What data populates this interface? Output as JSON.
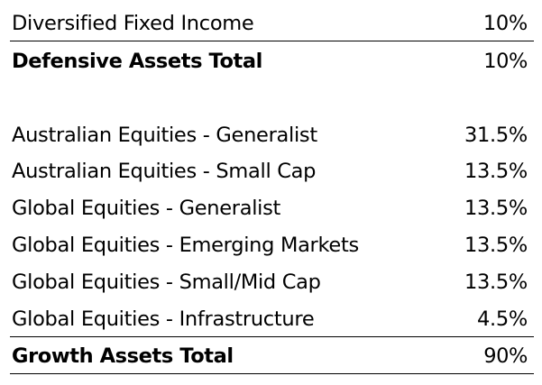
{
  "defensive": {
    "rows": [
      {
        "label": "Diversified Fixed Income",
        "value": "10%"
      }
    ],
    "total": {
      "label": "Defensive Assets Total",
      "value": "10%"
    }
  },
  "growth": {
    "rows": [
      {
        "label": "Australian Equities - Generalist",
        "value": "31.5%"
      },
      {
        "label": "Australian Equities - Small Cap",
        "value": "13.5%"
      },
      {
        "label": "Global Equities - Generalist",
        "value": "13.5%"
      },
      {
        "label": "Global Equities - Emerging Markets",
        "value": "13.5%"
      },
      {
        "label": "Global Equities - Small/Mid Cap",
        "value": "13.5%"
      },
      {
        "label": "Global Equities - Infrastructure",
        "value": "4.5%"
      }
    ],
    "total": {
      "label": "Growth Assets Total",
      "value": "90%"
    }
  }
}
